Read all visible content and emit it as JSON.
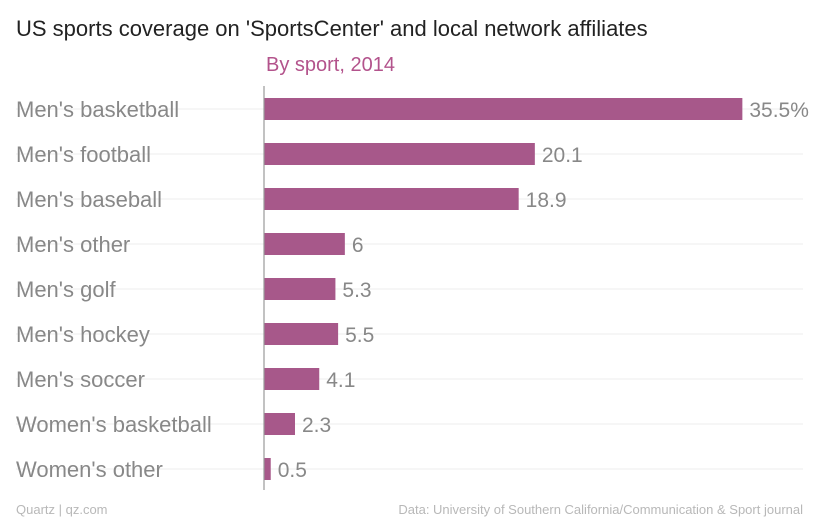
{
  "chart_data": {
    "type": "bar",
    "orientation": "horizontal",
    "title": "US sports coverage on 'SportsCenter' and local network affiliates",
    "subtitle": "By sport, 2014",
    "categories": [
      "Men's basketball",
      "Men's football",
      "Men's baseball",
      "Men's other",
      "Men's golf",
      "Men's hockey",
      "Men's soccer",
      "Women's basketball",
      "Women's other"
    ],
    "values": [
      35.5,
      20.1,
      18.9,
      6,
      5.3,
      5.5,
      4.1,
      2.3,
      0.5
    ],
    "value_labels": [
      "35.5%",
      "20.1",
      "18.9",
      "6",
      "5.3",
      "5.5",
      "4.1",
      "2.3",
      "0.5"
    ],
    "xlim": [
      0,
      40
    ],
    "grid": true,
    "bar_color": "#a7588a",
    "accent_color": "#b3538c"
  },
  "footer": {
    "source_left": "Quartz | qz.com",
    "source_right": "Data: University of Southern California/Communication & Sport journal"
  }
}
